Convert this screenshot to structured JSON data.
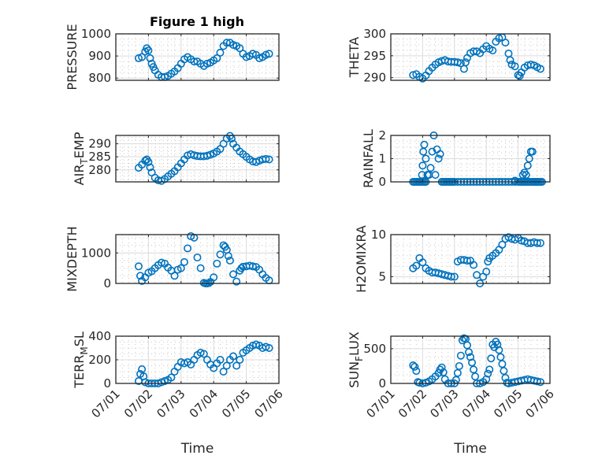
{
  "figure": {
    "title": "Figure 1 high",
    "marker_color": "#0072BD"
  },
  "chart_data": [
    {
      "type": "scatter",
      "title": "Figure 1 high",
      "ylabel": "PRESSURE",
      "xlabel": "",
      "xlim": [
        0,
        5
      ],
      "ylim": [
        790,
        1000
      ],
      "yticks": [
        800,
        900,
        1000
      ],
      "xticks": [
        "07/01",
        "07/02",
        "07/03",
        "07/04",
        "07/05",
        "07/06"
      ],
      "show_xticklabels": false,
      "grid": true,
      "minor_grid": true,
      "x": [
        0.7,
        0.8,
        0.9,
        0.95,
        1.0,
        1.05,
        1.1,
        1.15,
        1.2,
        1.3,
        1.4,
        1.5,
        1.6,
        1.7,
        1.8,
        1.9,
        2.0,
        2.1,
        2.2,
        2.3,
        2.4,
        2.5,
        2.6,
        2.7,
        2.8,
        2.9,
        3.0,
        3.1,
        3.2,
        3.3,
        3.4,
        3.5,
        3.6,
        3.7,
        3.8,
        3.9,
        4.0,
        4.1,
        4.2,
        4.3,
        4.4,
        4.5,
        4.6,
        4.7
      ],
      "y": [
        890,
        895,
        920,
        935,
        925,
        890,
        865,
        850,
        835,
        815,
        805,
        805,
        810,
        820,
        830,
        845,
        865,
        885,
        895,
        885,
        875,
        875,
        865,
        855,
        865,
        870,
        880,
        890,
        915,
        945,
        960,
        960,
        950,
        945,
        935,
        910,
        895,
        900,
        910,
        905,
        890,
        895,
        905,
        910
      ]
    },
    {
      "type": "scatter",
      "ylabel": "THETA",
      "xlabel": "",
      "xlim": [
        0,
        5
      ],
      "ylim": [
        289.4,
        300
      ],
      "yticks": [
        290,
        295,
        300
      ],
      "xticks": [
        "07/01",
        "07/02",
        "07/03",
        "07/04",
        "07/05",
        "07/06"
      ],
      "show_xticklabels": false,
      "grid": true,
      "minor_grid": true,
      "x": [
        0.7,
        0.8,
        0.9,
        1.0,
        1.1,
        1.2,
        1.3,
        1.4,
        1.5,
        1.6,
        1.7,
        1.8,
        1.9,
        2.0,
        2.1,
        2.2,
        2.3,
        2.35,
        2.4,
        2.5,
        2.6,
        2.7,
        2.8,
        2.9,
        3.0,
        3.1,
        3.2,
        3.3,
        3.4,
        3.5,
        3.6,
        3.7,
        3.75,
        3.8,
        3.9,
        4.0,
        4.05,
        4.1,
        4.2,
        4.3,
        4.4,
        4.5,
        4.6,
        4.7
      ],
      "y": [
        290.6,
        290.8,
        290.2,
        289.8,
        290.5,
        291.5,
        292.3,
        293.0,
        293.5,
        293.8,
        294.0,
        293.7,
        293.6,
        293.6,
        293.5,
        293.3,
        292.0,
        293.5,
        294.5,
        295.6,
        296.0,
        296.0,
        295.6,
        296.5,
        297.2,
        296.6,
        296.2,
        298.2,
        299.0,
        299.2,
        298.0,
        295.5,
        294.0,
        293.0,
        292.6,
        290.6,
        290.4,
        291.2,
        292.3,
        292.8,
        293.0,
        292.8,
        292.4,
        292.0
      ]
    },
    {
      "type": "scatter",
      "ylabel": "AIR_TEMP",
      "ylabel_display": [
        "AIR",
        "T",
        "EMP"
      ],
      "xlabel": "",
      "xlim": [
        0,
        5
      ],
      "ylim": [
        275.4,
        293.2
      ],
      "yticks": [
        280,
        285,
        290
      ],
      "xticks": [
        "07/01",
        "07/02",
        "07/03",
        "07/04",
        "07/05",
        "07/06"
      ],
      "show_xticklabels": false,
      "grid": true,
      "minor_grid": true,
      "x": [
        0.7,
        0.8,
        0.9,
        0.95,
        1.0,
        1.05,
        1.1,
        1.2,
        1.3,
        1.4,
        1.5,
        1.6,
        1.7,
        1.8,
        1.9,
        2.0,
        2.1,
        2.2,
        2.3,
        2.4,
        2.5,
        2.6,
        2.7,
        2.8,
        2.9,
        3.0,
        3.1,
        3.2,
        3.3,
        3.4,
        3.5,
        3.55,
        3.6,
        3.7,
        3.8,
        3.9,
        4.0,
        4.1,
        4.2,
        4.3,
        4.4,
        4.5,
        4.6,
        4.7
      ],
      "y": [
        280.8,
        282.0,
        283.5,
        284.0,
        283.0,
        281.0,
        279.0,
        277.0,
        276.0,
        275.8,
        276.5,
        277.5,
        278.5,
        279.5,
        281.0,
        282.5,
        284.0,
        285.5,
        286.0,
        285.6,
        285.3,
        285.2,
        285.2,
        285.4,
        285.8,
        286.3,
        287.0,
        288.0,
        290.0,
        292.0,
        293.0,
        292.0,
        290.0,
        288.5,
        287.0,
        286.0,
        285.0,
        284.0,
        283.2,
        283.0,
        283.5,
        284.0,
        284.2,
        284.0
      ]
    },
    {
      "type": "scatter",
      "ylabel": "RAINFALL",
      "xlabel": "",
      "xlim": [
        0,
        5
      ],
      "ylim": [
        0,
        2
      ],
      "yticks": [
        0,
        1,
        2
      ],
      "xticks": [
        "07/01",
        "07/02",
        "07/03",
        "07/04",
        "07/05",
        "07/06"
      ],
      "show_xticklabels": false,
      "grid": true,
      "minor_grid": true,
      "x": [
        0.7,
        0.75,
        0.8,
        0.85,
        0.9,
        0.95,
        1.0,
        1.05,
        1.1,
        0.98,
        1.0,
        1.02,
        1.05,
        1.1,
        1.15,
        1.2,
        1.25,
        1.3,
        1.35,
        1.4,
        1.45,
        1.5,
        1.55,
        1.6,
        1.65,
        1.7,
        1.75,
        1.8,
        1.85,
        1.9,
        1.95,
        2.0,
        2.1,
        2.2,
        2.3,
        2.4,
        2.5,
        2.6,
        2.7,
        2.8,
        2.9,
        3.0,
        3.1,
        3.2,
        3.3,
        3.4,
        3.5,
        3.6,
        3.7,
        3.8,
        3.9,
        4.0,
        4.05,
        4.1,
        4.15,
        4.2,
        4.25,
        4.3,
        4.35,
        4.4,
        4.45,
        4.5,
        4.6,
        4.65,
        4.7,
        4.75,
        4.2,
        4.25,
        4.3,
        4.35,
        4.4,
        4.45,
        4.5,
        4.55,
        4.6,
        3.9,
        4.15
      ],
      "y": [
        0,
        0,
        0,
        0,
        0,
        0,
        0,
        0,
        0,
        0.3,
        0.7,
        1.3,
        1.6,
        1.0,
        0.3,
        0.3,
        0.6,
        1.3,
        2.0,
        0.3,
        1.4,
        1.0,
        1.2,
        0,
        0,
        0,
        0,
        0,
        0,
        0,
        0,
        0,
        0,
        0,
        0,
        0,
        0,
        0,
        0,
        0,
        0,
        0,
        0,
        0,
        0,
        0,
        0,
        0,
        0,
        0,
        0,
        0,
        0,
        0,
        0,
        0,
        0,
        0,
        0,
        0,
        0,
        0,
        0,
        0,
        0,
        0,
        0.4,
        0.3,
        0.7,
        1.0,
        1.3,
        1.3,
        0,
        0,
        0,
        0.05,
        0.3
      ],
      "note": "approximate; many zero-valued points overplotted"
    },
    {
      "type": "scatter",
      "ylabel": "MIXDEPTH",
      "xlabel": "",
      "xlim": [
        0,
        5
      ],
      "ylim": [
        0,
        1600
      ],
      "yticks": [
        0,
        1000
      ],
      "xticks": [
        "07/01",
        "07/02",
        "07/03",
        "07/04",
        "07/05",
        "07/06"
      ],
      "show_xticklabels": false,
      "grid": true,
      "minor_grid": true,
      "x": [
        0.7,
        0.75,
        0.8,
        0.9,
        1.0,
        1.1,
        1.2,
        1.3,
        1.4,
        1.5,
        1.6,
        1.7,
        1.8,
        1.9,
        2.0,
        2.1,
        2.2,
        2.3,
        2.4,
        2.5,
        2.6,
        2.7,
        2.75,
        2.8,
        2.85,
        2.9,
        3.0,
        3.1,
        3.2,
        3.3,
        3.35,
        3.4,
        3.45,
        3.5,
        3.6,
        3.7,
        3.8,
        3.85,
        3.9,
        4.0,
        4.1,
        4.2,
        4.3,
        4.4,
        4.5,
        4.6,
        4.7
      ],
      "y": [
        560,
        250,
        80,
        200,
        350,
        400,
        500,
        600,
        680,
        650,
        520,
        420,
        250,
        450,
        500,
        700,
        1150,
        1550,
        1500,
        850,
        500,
        20,
        0,
        0,
        10,
        50,
        200,
        650,
        950,
        1250,
        1200,
        1100,
        900,
        750,
        300,
        60,
        420,
        500,
        550,
        560,
        580,
        560,
        540,
        450,
        300,
        180,
        100
      ]
    },
    {
      "type": "scatter",
      "ylabel": "H2OMIXRA",
      "xlabel": "",
      "xlim": [
        0,
        5
      ],
      "ylim": [
        4.2,
        10
      ],
      "yticks": [
        5,
        10
      ],
      "xticks": [
        "07/01",
        "07/02",
        "07/03",
        "07/04",
        "07/05",
        "07/06"
      ],
      "show_xticklabels": false,
      "grid": true,
      "minor_grid": true,
      "x": [
        0.7,
        0.8,
        0.9,
        1.0,
        1.1,
        1.2,
        1.3,
        1.4,
        1.5,
        1.6,
        1.7,
        1.8,
        1.9,
        2.0,
        2.1,
        2.2,
        2.3,
        2.4,
        2.5,
        2.6,
        2.7,
        2.8,
        2.9,
        3.0,
        3.05,
        3.1,
        3.2,
        3.3,
        3.4,
        3.5,
        3.6,
        3.7,
        3.8,
        3.9,
        4.0,
        4.1,
        4.2,
        4.3,
        4.4,
        4.5,
        4.6,
        4.7
      ],
      "y": [
        6.0,
        6.3,
        7.2,
        6.7,
        6.0,
        5.7,
        5.5,
        5.5,
        5.4,
        5.3,
        5.2,
        5.1,
        5.0,
        5.0,
        6.8,
        7.0,
        7.0,
        6.9,
        6.9,
        6.4,
        5.2,
        4.2,
        5.0,
        5.6,
        6.8,
        7.2,
        7.5,
        7.8,
        8.2,
        8.8,
        9.5,
        9.7,
        9.5,
        9.4,
        9.6,
        9.3,
        9.2,
        9.0,
        9.0,
        9.1,
        9.0,
        9.0
      ]
    },
    {
      "type": "scatter",
      "ylabel": "TERR_MSL",
      "ylabel_display": [
        "TERR",
        "M",
        "SL"
      ],
      "xlabel": "Time",
      "xlim": [
        0,
        5
      ],
      "ylim": [
        0,
        400
      ],
      "yticks": [
        0,
        200,
        400
      ],
      "xticks": [
        "07/01",
        "07/02",
        "07/03",
        "07/04",
        "07/05",
        "07/06"
      ],
      "show_xticklabels": true,
      "grid": true,
      "minor_grid": true,
      "x": [
        0.7,
        0.75,
        0.8,
        0.85,
        0.9,
        1.0,
        1.1,
        1.2,
        1.3,
        1.4,
        1.5,
        1.6,
        1.7,
        1.8,
        1.9,
        2.0,
        2.1,
        2.2,
        2.3,
        2.4,
        2.5,
        2.6,
        2.7,
        2.8,
        2.9,
        3.0,
        3.1,
        3.2,
        3.3,
        3.4,
        3.5,
        3.6,
        3.7,
        3.8,
        3.9,
        4.0,
        4.1,
        4.2,
        4.3,
        4.4,
        4.5,
        4.6,
        4.7
      ],
      "y": [
        20,
        80,
        120,
        60,
        10,
        0,
        0,
        0,
        0,
        10,
        20,
        30,
        50,
        100,
        140,
        180,
        170,
        180,
        160,
        200,
        240,
        260,
        250,
        200,
        160,
        130,
        170,
        200,
        100,
        150,
        200,
        230,
        150,
        200,
        260,
        280,
        300,
        320,
        330,
        320,
        300,
        310,
        300
      ]
    },
    {
      "type": "scatter",
      "ylabel": "SUN_FLUX",
      "ylabel_display": [
        "SUN",
        "F",
        "LUX"
      ],
      "xlabel": "Time",
      "xlim": [
        0,
        5
      ],
      "ylim": [
        0,
        680
      ],
      "yticks": [
        0,
        500
      ],
      "xticks": [
        "07/01",
        "07/02",
        "07/03",
        "07/04",
        "07/05",
        "07/06"
      ],
      "show_xticklabels": true,
      "grid": true,
      "minor_grid": true,
      "x": [
        0.7,
        0.75,
        0.8,
        0.85,
        0.9,
        1.0,
        1.1,
        1.2,
        1.3,
        1.4,
        1.5,
        1.55,
        1.6,
        1.65,
        1.7,
        1.8,
        1.9,
        2.0,
        2.05,
        2.1,
        2.15,
        2.2,
        2.25,
        2.3,
        2.35,
        2.4,
        2.45,
        2.5,
        2.55,
        2.6,
        2.65,
        2.7,
        2.8,
        2.9,
        3.0,
        3.05,
        3.1,
        3.15,
        3.2,
        3.25,
        3.3,
        3.35,
        3.4,
        3.45,
        3.5,
        3.55,
        3.6,
        3.65,
        3.7,
        3.8,
        3.9,
        4.0,
        4.1,
        4.2,
        4.3,
        4.4,
        4.5,
        4.6,
        4.7
      ],
      "y": [
        260,
        240,
        180,
        20,
        10,
        0,
        10,
        30,
        60,
        100,
        150,
        200,
        230,
        160,
        60,
        0,
        0,
        0,
        50,
        150,
        250,
        400,
        620,
        650,
        640,
        550,
        450,
        380,
        300,
        200,
        100,
        0,
        0,
        20,
        60,
        140,
        200,
        360,
        560,
        520,
        600,
        560,
        480,
        380,
        280,
        180,
        80,
        10,
        0,
        10,
        20,
        30,
        40,
        50,
        60,
        50,
        40,
        30,
        20
      ]
    }
  ]
}
